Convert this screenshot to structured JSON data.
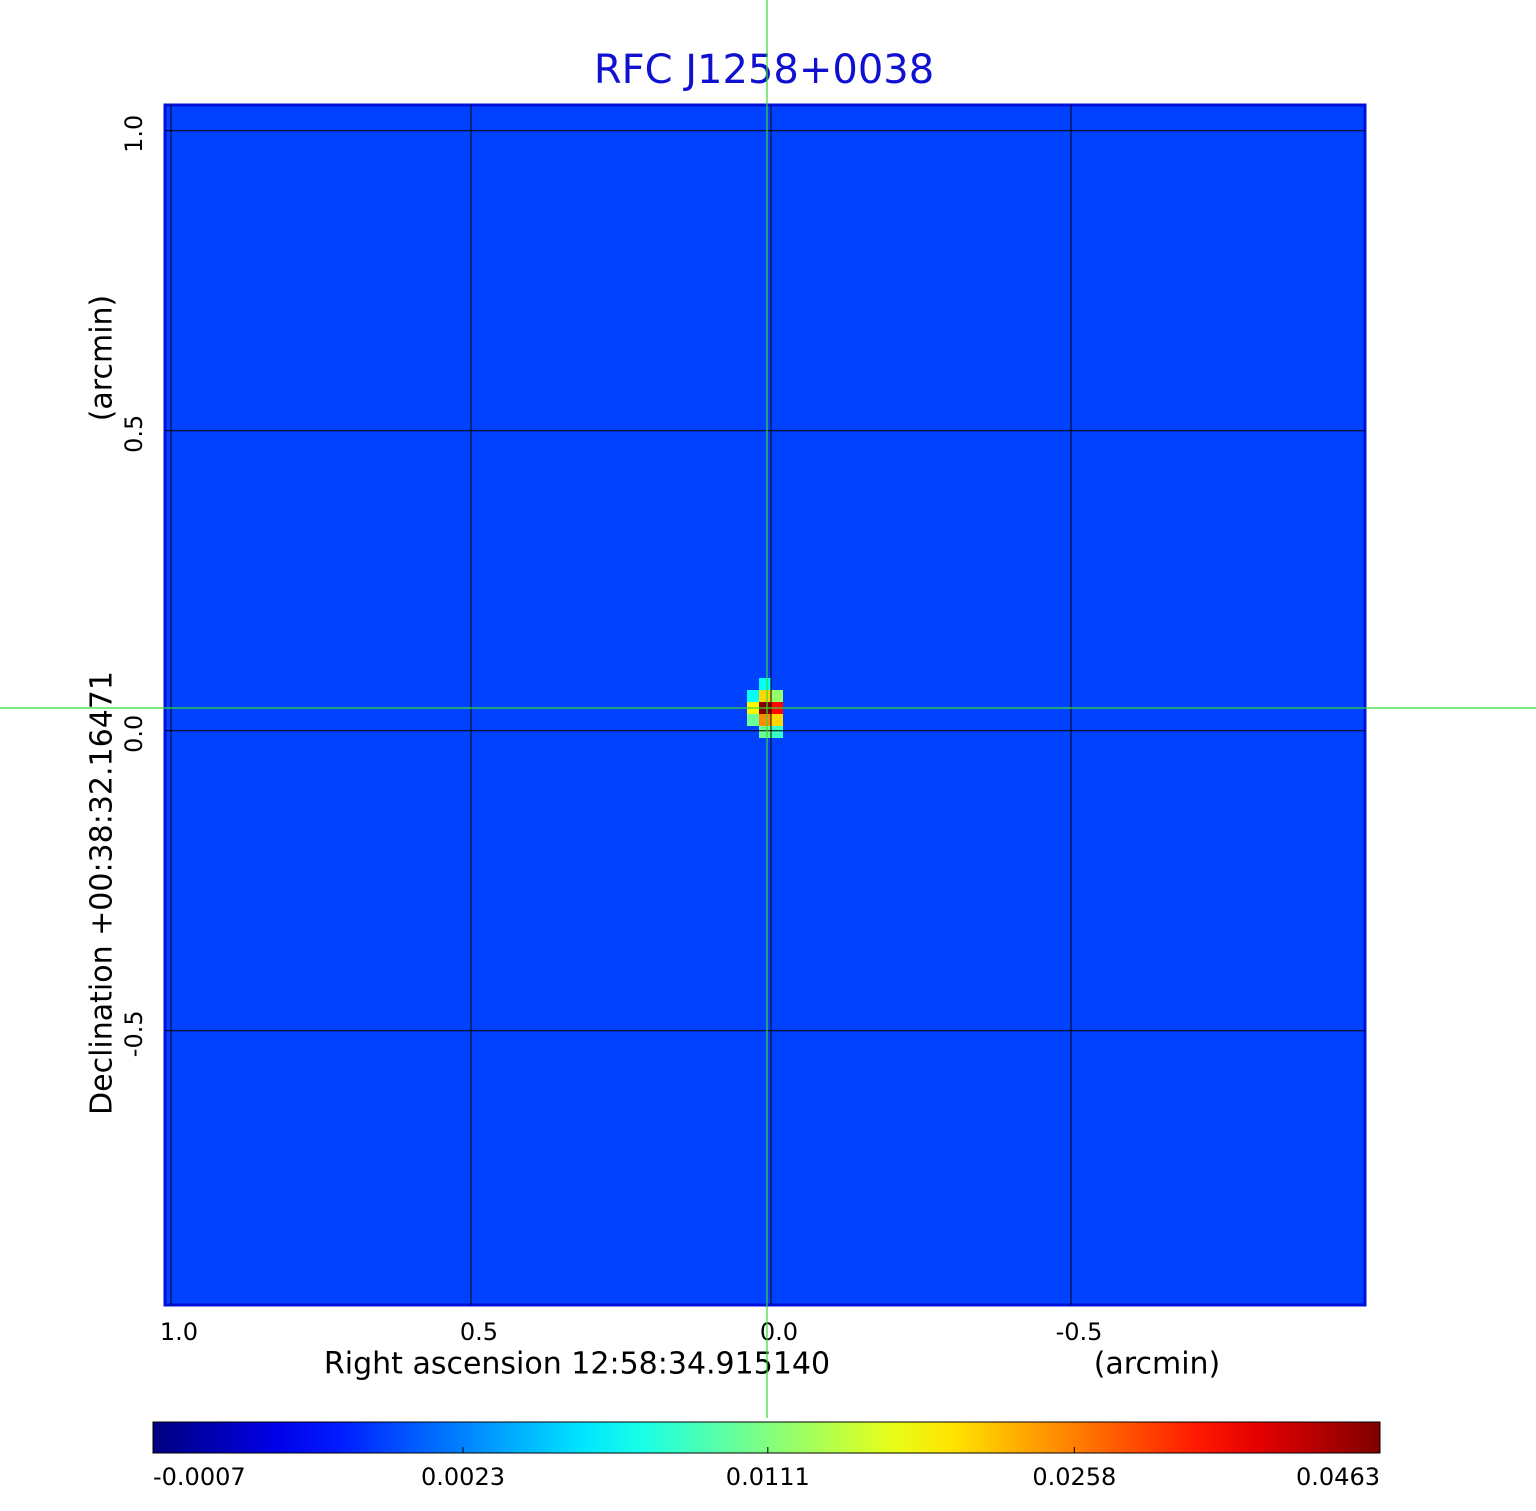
{
  "chart_data": {
    "type": "image",
    "title": "RFC J1258+0038",
    "xlabel": "Right ascension  12:58:34.915140",
    "xunit": "(arcmin)",
    "ylabel": "Declination  +00:38:32.16471",
    "yunit": "(arcmin)",
    "xlim": [
      1.01,
      -0.99
    ],
    "ylim": [
      -0.957,
      1.043
    ],
    "xticks": [
      {
        "value": 1,
        "label": "1.0"
      },
      0.5,
      {
        "value": 0,
        "label": "0.0"
      },
      -0.5
    ],
    "yticks": [
      {
        "value": 1,
        "label": "1.0"
      },
      0.5,
      {
        "value": 0,
        "label": "0.0"
      },
      -0.5
    ],
    "grid": true,
    "colormap": "jet",
    "image": {
      "background": 0.001,
      "pixel_size": 0.02,
      "pixels": [
        {
          "x": 0.01,
          "y": 0.038,
          "value": 0.0463
        },
        {
          "x": -0.01,
          "y": 0.038,
          "value": 0.035
        },
        {
          "x": 0.01,
          "y": 0.018,
          "value": 0.025
        },
        {
          "x": -0.01,
          "y": 0.018,
          "value": 0.02
        },
        {
          "x": 0.03,
          "y": 0.038,
          "value": 0.018
        },
        {
          "x": 0.01,
          "y": 0.058,
          "value": 0.02
        },
        {
          "x": -0.01,
          "y": 0.058,
          "value": 0.012
        },
        {
          "x": 0.03,
          "y": 0.018,
          "value": 0.01
        },
        {
          "x": 0.01,
          "y": 0.078,
          "value": 0.006
        },
        {
          "x": -0.01,
          "y": -0.002,
          "value": 0.008
        },
        {
          "x": 0.03,
          "y": 0.058,
          "value": 0.006
        },
        {
          "x": 0.01,
          "y": -0.002,
          "value": 0.01
        }
      ]
    },
    "colorbar": {
      "scale": "sqrt",
      "lim": [
        -0.0007,
        0.0463
      ],
      "ticks": [
        -0.0007,
        0.0023,
        0.0111,
        0.0258,
        0.0463
      ]
    }
  }
}
